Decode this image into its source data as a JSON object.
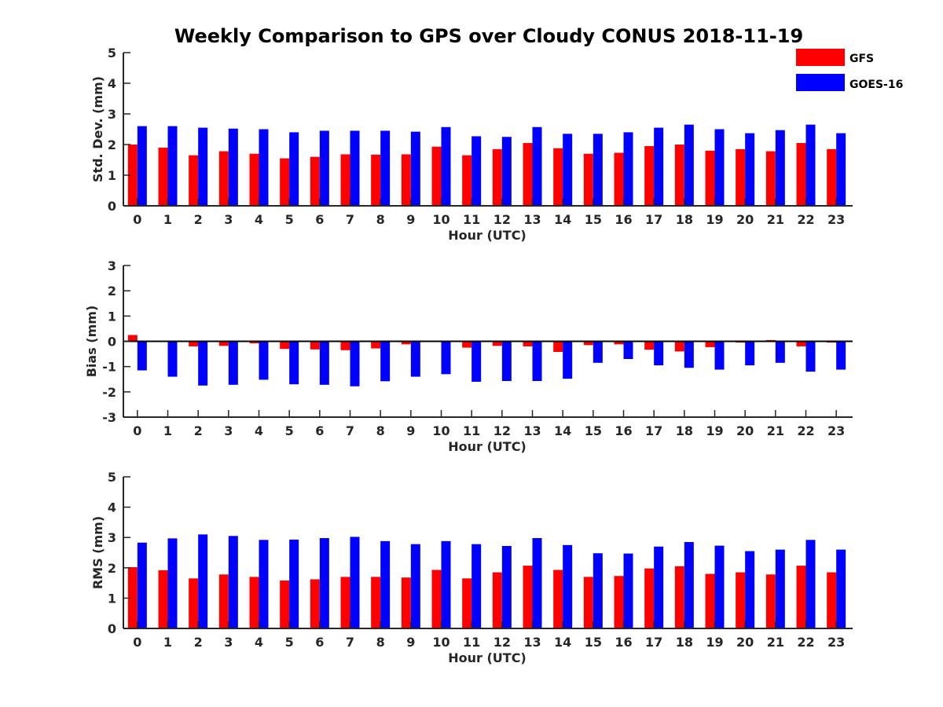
{
  "figure": {
    "title": "Weekly Comparison to GPS over Cloudy CONUS 2018-11-19"
  },
  "legend": {
    "placement": "top-right",
    "items": [
      {
        "name": "GFS",
        "color": "#ff0000"
      },
      {
        "name": "GOES-16",
        "color": "#0000ff"
      }
    ]
  },
  "chart_data": [
    {
      "type": "bar",
      "xlabel": "Hour (UTC)",
      "ylabel": "Std. Dev. (mm)",
      "ylim": [
        0,
        5
      ],
      "yticks": [
        0,
        1,
        2,
        3,
        4,
        5
      ],
      "categories": [
        "0",
        "1",
        "2",
        "3",
        "4",
        "5",
        "6",
        "7",
        "8",
        "9",
        "10",
        "11",
        "12",
        "13",
        "14",
        "15",
        "16",
        "17",
        "18",
        "19",
        "20",
        "21",
        "22",
        "23"
      ],
      "series": [
        {
          "name": "GFS",
          "color": "#ff0000",
          "values": [
            2.0,
            1.9,
            1.65,
            1.78,
            1.7,
            1.55,
            1.6,
            1.68,
            1.67,
            1.68,
            1.93,
            1.65,
            1.85,
            2.05,
            1.88,
            1.7,
            1.73,
            1.95,
            2.0,
            1.8,
            1.85,
            1.78,
            2.05,
            1.85
          ]
        },
        {
          "name": "GOES-16",
          "color": "#0000ff",
          "values": [
            2.6,
            2.6,
            2.55,
            2.52,
            2.5,
            2.4,
            2.45,
            2.45,
            2.45,
            2.42,
            2.57,
            2.27,
            2.25,
            2.57,
            2.35,
            2.35,
            2.4,
            2.55,
            2.65,
            2.5,
            2.37,
            2.47,
            2.65,
            2.37
          ]
        }
      ]
    },
    {
      "type": "bar",
      "xlabel": "Hour (UTC)",
      "ylabel": "Bias (mm)",
      "ylim": [
        -3,
        3
      ],
      "yticks": [
        -3,
        -2,
        -1,
        0,
        1,
        2,
        3
      ],
      "categories": [
        "0",
        "1",
        "2",
        "3",
        "4",
        "5",
        "6",
        "7",
        "8",
        "9",
        "10",
        "11",
        "12",
        "13",
        "14",
        "15",
        "16",
        "17",
        "18",
        "19",
        "20",
        "21",
        "22",
        "23"
      ],
      "series": [
        {
          "name": "GFS",
          "color": "#ff0000",
          "values": [
            0.25,
            0.03,
            -0.2,
            -0.18,
            -0.08,
            -0.3,
            -0.32,
            -0.35,
            -0.28,
            -0.12,
            0.0,
            -0.25,
            -0.18,
            -0.2,
            -0.42,
            -0.15,
            -0.12,
            -0.33,
            -0.4,
            -0.23,
            -0.05,
            0.05,
            -0.2,
            -0.05
          ]
        },
        {
          "name": "GOES-16",
          "color": "#0000ff",
          "values": [
            -1.15,
            -1.4,
            -1.75,
            -1.72,
            -1.52,
            -1.7,
            -1.72,
            -1.78,
            -1.58,
            -1.4,
            -1.3,
            -1.6,
            -1.57,
            -1.57,
            -1.48,
            -0.85,
            -0.7,
            -0.95,
            -1.05,
            -1.12,
            -0.95,
            -0.85,
            -1.2,
            -1.12
          ]
        }
      ]
    },
    {
      "type": "bar",
      "xlabel": "Hour (UTC)",
      "ylabel": "RMS (mm)",
      "ylim": [
        0,
        5
      ],
      "yticks": [
        0,
        1,
        2,
        3,
        4,
        5
      ],
      "categories": [
        "0",
        "1",
        "2",
        "3",
        "4",
        "5",
        "6",
        "7",
        "8",
        "9",
        "10",
        "11",
        "12",
        "13",
        "14",
        "15",
        "16",
        "17",
        "18",
        "19",
        "20",
        "21",
        "22",
        "23"
      ],
      "series": [
        {
          "name": "GFS",
          "color": "#ff0000",
          "values": [
            2.02,
            1.92,
            1.65,
            1.78,
            1.7,
            1.58,
            1.62,
            1.7,
            1.7,
            1.68,
            1.93,
            1.65,
            1.85,
            2.07,
            1.93,
            1.7,
            1.73,
            1.98,
            2.05,
            1.8,
            1.85,
            1.78,
            2.07,
            1.85
          ]
        },
        {
          "name": "GOES-16",
          "color": "#0000ff",
          "values": [
            2.83,
            2.97,
            3.1,
            3.05,
            2.92,
            2.93,
            2.98,
            3.02,
            2.88,
            2.78,
            2.88,
            2.78,
            2.72,
            2.98,
            2.75,
            2.48,
            2.47,
            2.7,
            2.85,
            2.73,
            2.55,
            2.6,
            2.92,
            2.6
          ]
        }
      ]
    }
  ]
}
